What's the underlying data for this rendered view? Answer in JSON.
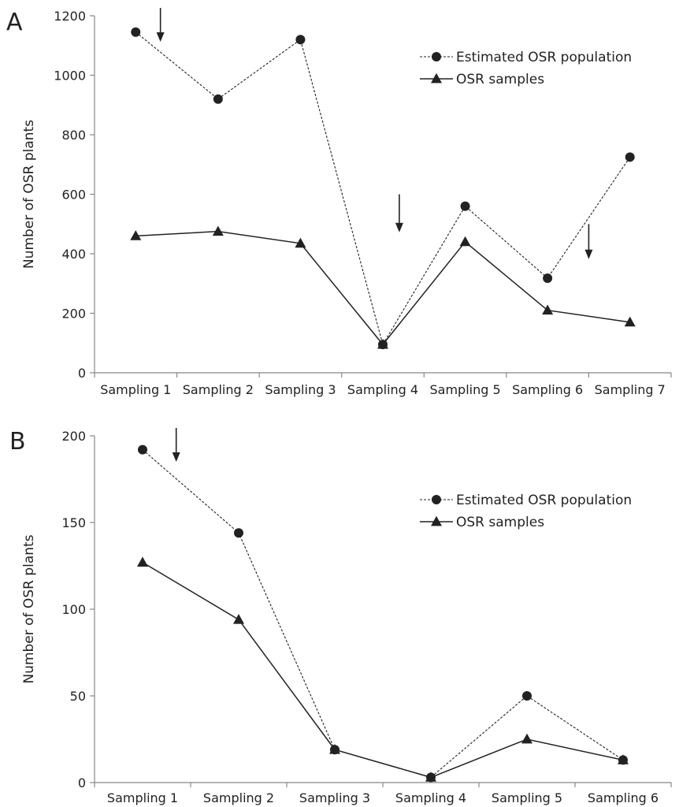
{
  "chart_data": [
    {
      "type": "line",
      "panel_label": "A",
      "title": "",
      "xlabel": "",
      "ylabel": "Number of OSR plants",
      "ylim": [
        0,
        1200
      ],
      "yticks": [
        "0",
        "200",
        "400",
        "600",
        "800",
        "1000",
        "1200"
      ],
      "categories": [
        "Sampling 1",
        "Sampling 2",
        "Sampling 3",
        "Sampling 4",
        "Sampling 5",
        "Sampling 6",
        "Sampling 7"
      ],
      "series": [
        {
          "name": "Estimated OSR population",
          "marker": "circle",
          "style": "dashed",
          "values": [
            1145,
            920,
            1120,
            95,
            560,
            318,
            725
          ]
        },
        {
          "name": "OSR samples",
          "marker": "triangle",
          "style": "solid",
          "values": [
            460,
            475,
            435,
            95,
            440,
            210,
            170
          ]
        }
      ],
      "arrows_between_categories": [
        1.3,
        4.2,
        6.5
      ],
      "legend_position": "top-right",
      "grid": false
    },
    {
      "type": "line",
      "panel_label": "B",
      "title": "",
      "xlabel": "",
      "ylabel": "Number of OSR plants",
      "ylim": [
        0,
        200
      ],
      "yticks": [
        "0",
        "50",
        "100",
        "150",
        "200"
      ],
      "categories": [
        "Sampling 1",
        "Sampling 2",
        "Sampling 3",
        "Sampling 4",
        "Sampling 5",
        "Sampling 6"
      ],
      "series": [
        {
          "name": "Estimated OSR population",
          "marker": "circle",
          "style": "dashed",
          "values": [
            192,
            144,
            19,
            3,
            50,
            13
          ]
        },
        {
          "name": "OSR samples",
          "marker": "triangle",
          "style": "solid",
          "values": [
            127,
            94,
            19,
            3,
            25,
            13
          ]
        }
      ],
      "arrows_between_categories": [
        1.35
      ],
      "legend_position": "top-right",
      "grid": false
    }
  ]
}
